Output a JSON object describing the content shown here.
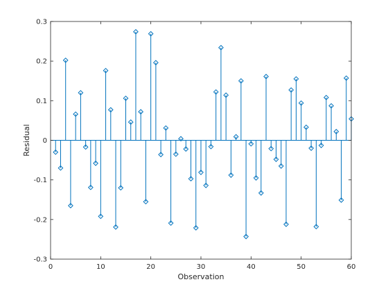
{
  "chart_data": {
    "type": "stem",
    "title": "",
    "xlabel": "Observation",
    "ylabel": "Residual",
    "xlim": [
      0,
      60
    ],
    "ylim": [
      -0.3,
      0.3
    ],
    "xticks": [
      0,
      10,
      20,
      30,
      40,
      50,
      60
    ],
    "yticks": [
      -0.3,
      -0.2,
      -0.1,
      0,
      0.1,
      0.2,
      0.3
    ],
    "x_tick_labels": [
      "0",
      "10",
      "20",
      "30",
      "40",
      "50",
      "60"
    ],
    "y_tick_labels": [
      "-0.3",
      "-0.2",
      "-0.1",
      "0",
      "0.1",
      "0.2",
      "0.3"
    ],
    "grid": false,
    "legend": "none",
    "color": "#0072BD",
    "x": [
      1,
      2,
      3,
      4,
      5,
      6,
      7,
      8,
      9,
      10,
      11,
      12,
      13,
      14,
      15,
      16,
      17,
      18,
      19,
      20,
      21,
      22,
      23,
      24,
      25,
      26,
      27,
      28,
      29,
      30,
      31,
      32,
      33,
      34,
      35,
      36,
      37,
      38,
      39,
      40,
      41,
      42,
      43,
      44,
      45,
      46,
      47,
      48,
      49,
      50,
      51,
      52,
      53,
      54,
      55,
      56,
      57,
      58,
      59,
      60
    ],
    "y": [
      -0.03,
      -0.07,
      0.202,
      -0.165,
      0.066,
      0.12,
      -0.017,
      -0.119,
      -0.058,
      -0.192,
      0.176,
      0.077,
      -0.219,
      -0.12,
      0.106,
      0.046,
      0.274,
      0.072,
      -0.155,
      0.269,
      0.196,
      -0.036,
      0.031,
      -0.209,
      -0.035,
      0.004,
      -0.022,
      -0.097,
      -0.221,
      -0.081,
      -0.114,
      -0.016,
      0.122,
      0.234,
      0.114,
      -0.088,
      0.009,
      0.15,
      -0.243,
      -0.009,
      -0.095,
      -0.133,
      0.161,
      -0.021,
      -0.048,
      -0.065,
      -0.212,
      0.127,
      0.155,
      0.094,
      0.033,
      -0.02,
      -0.218,
      -0.013,
      0.108,
      0.087,
      0.022,
      -0.151,
      0.157,
      0.054
    ]
  }
}
